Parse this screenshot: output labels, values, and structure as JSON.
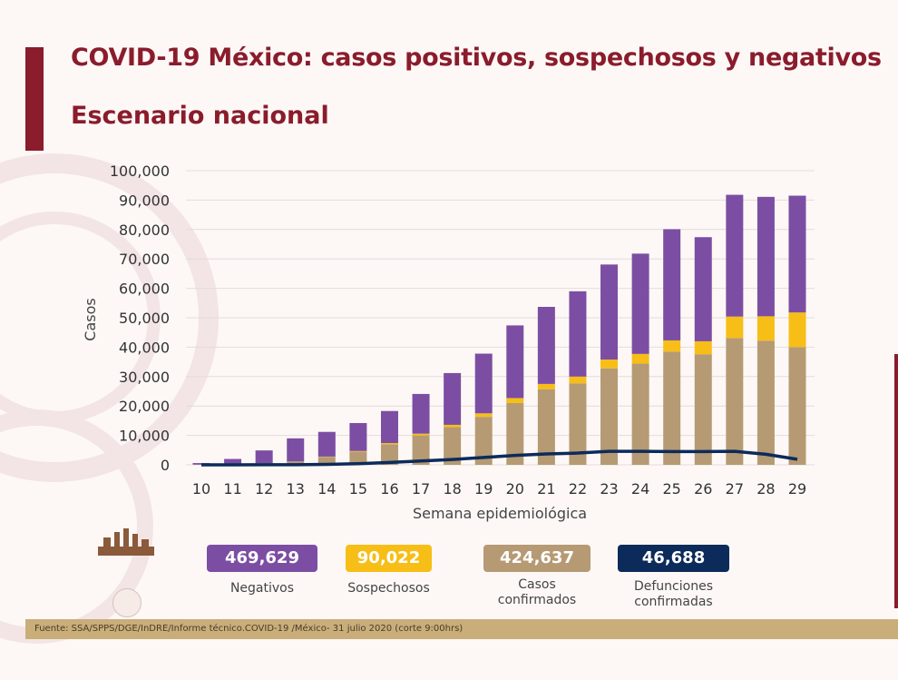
{
  "slide": {
    "title": "COVID-19 México: casos positivos, sospechosos y negativos",
    "subtitle": "Escenario nacional",
    "source": "Fuente: SSA/SPPS/DGE/InDRE/Informe técnico.COVID-19 /México- 31 julio 2020 (corte 9:00hrs)",
    "accent_color": "#8a1c2c"
  },
  "summary": [
    {
      "value": "469,629",
      "label": [
        "Negativos"
      ],
      "color": "#7b4ea3"
    },
    {
      "value": "90,022",
      "label": [
        "Sospechosos"
      ],
      "color": "#f7be17"
    },
    {
      "value": "424,637",
      "label": [
        "Casos",
        "confirmados"
      ],
      "color": "#b59a73"
    },
    {
      "value": "46,688",
      "label": [
        "Defunciones",
        "confirmadas"
      ],
      "color": "#0c2b5a"
    }
  ],
  "chart_data": {
    "type": "bar",
    "stacked": true,
    "xlabel": "Semana epidemiológica",
    "ylabel": "Casos",
    "ylim": [
      0,
      100000
    ],
    "yticks": [
      0,
      10000,
      20000,
      30000,
      40000,
      50000,
      60000,
      70000,
      80000,
      90000,
      100000
    ],
    "ytick_labels": [
      "0",
      "10,000",
      "20,000",
      "30,000",
      "40,000",
      "50,000",
      "60,000",
      "70,000",
      "80,000",
      "90,000",
      "100,000"
    ],
    "grid": true,
    "categories": [
      "10",
      "11",
      "12",
      "13",
      "14",
      "15",
      "16",
      "17",
      "18",
      "19",
      "20",
      "21",
      "22",
      "23",
      "24",
      "25",
      "26",
      "27",
      "28",
      "29"
    ],
    "series": [
      {
        "key": "confirmados",
        "color": "#b59a73",
        "values": [
          100,
          300,
          600,
          1200,
          2700,
          4500,
          7000,
          10000,
          12800,
          16300,
          21000,
          25700,
          27700,
          32800,
          34400,
          38500,
          37600,
          43100,
          42200,
          40000
        ]
      },
      {
        "key": "sospechosos",
        "color": "#f7be17",
        "values": [
          0,
          0,
          0,
          0,
          100,
          200,
          400,
          600,
          800,
          1200,
          1700,
          1800,
          2300,
          3000,
          3300,
          3800,
          4400,
          7300,
          8300,
          11800
        ]
      },
      {
        "key": "negativos",
        "color": "#7b4ea3",
        "values": [
          500,
          1700,
          4300,
          7800,
          8400,
          9500,
          10900,
          13500,
          17600,
          20300,
          24700,
          26200,
          29000,
          32300,
          34100,
          37800,
          35400,
          41400,
          40600,
          39700
        ]
      },
      {
        "key": "defunciones",
        "type": "line",
        "color": "#0c2b5a",
        "values": [
          0,
          10,
          20,
          50,
          150,
          400,
          800,
          1300,
          1800,
          2500,
          3200,
          3700,
          4000,
          4600,
          4600,
          4500,
          4500,
          4600,
          3600,
          1900
        ]
      }
    ]
  }
}
